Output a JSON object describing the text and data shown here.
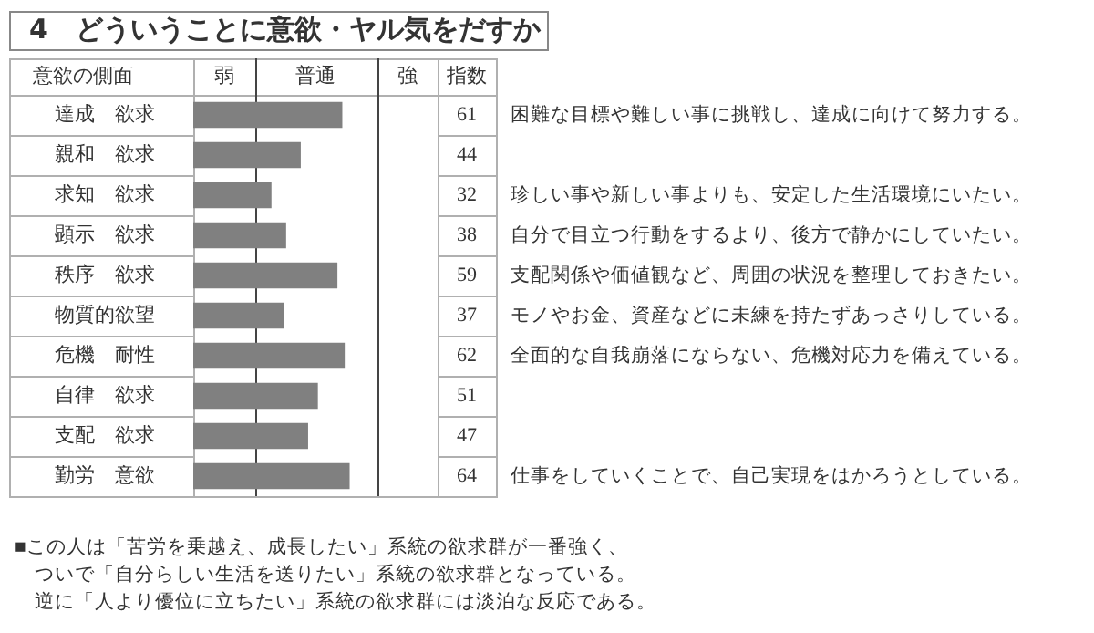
{
  "chart_data": {
    "type": "bar",
    "orientation": "horizontal",
    "title": "4　どういうことに意欲・ヤル気をだすか",
    "ylabel": "意欲の側面",
    "xlabel": "指数",
    "categories": [
      "達成　欲求",
      "親和　欲求",
      "求知　欲求",
      "顕示　欲求",
      "秩序　欲求",
      "物質的欲望",
      "危機　耐性",
      "自律　欲求",
      "支配　欲求",
      "勤労　意欲"
    ],
    "values": [
      61,
      44,
      32,
      38,
      59,
      37,
      62,
      51,
      47,
      64
    ],
    "color": "#808080",
    "xlim": [
      0,
      100
    ],
    "data_labels": true,
    "ref_lines": [
      {
        "axis": "x",
        "value": 25
      },
      {
        "axis": "x",
        "value": 75
      }
    ],
    "annotations": [
      "弱",
      "普通",
      "強",
      "困難な目標や難しい事に挑戦し、達成に向けて努力する。",
      "珍しい事や新しい事よりも、安定した生活環境にいたい。",
      "自分で目立つ行動をするより、後方で静かにしていたい。",
      "支配関係や価値観など、周囲の状況を整理しておきたい。",
      "モノやお金、資産などに未練を持たずあっさりしている。",
      "全面的な自我崩落にならない、危機対応力を備えている。",
      "仕事をしていくことで、自己実現をはかろうとしている。",
      "■この人は「苦労を乗越え、成長したい」系統の欲求群が一番強く、",
      "ついで「自分らしい生活を送りたい」系統の欲求群となっている。",
      "逆に「人より優位に立ちたい」系統の欲求群には淡泊な反応である。"
    ]
  }
}
